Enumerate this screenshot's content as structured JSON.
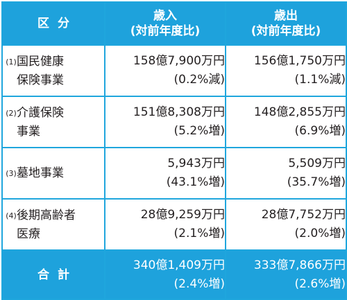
{
  "header": {
    "category": "区分",
    "revenue_title": "歳入",
    "revenue_sub": "(対前年度比)",
    "expense_title": "歳出",
    "expense_sub": "(対前年度比)"
  },
  "rows": [
    {
      "num": "(1)",
      "name_line1": "国民健康",
      "name_line2": "保険事業",
      "revenue": "158億7,900万円",
      "revenue_change": "(0.2%減)",
      "expense": "156億1,750万円",
      "expense_change": "(1.1%減)"
    },
    {
      "num": "(2)",
      "name_line1": "介護保険",
      "name_line2": "事業",
      "revenue": "151億8,308万円",
      "revenue_change": "(5.2%増)",
      "expense": "148億2,855万円",
      "expense_change": "(6.9%増)"
    },
    {
      "num": "(3)",
      "name_line1": "墓地事業",
      "name_line2": "",
      "revenue": "5,943万円",
      "revenue_change": "(43.1%増)",
      "expense": "5,509万円",
      "expense_change": "(35.7%増)"
    },
    {
      "num": "(4)",
      "name_line1": "後期高齢者",
      "name_line2": "医療",
      "revenue": "28億9,259万円",
      "revenue_change": "(2.1%増)",
      "expense": "28億7,752万円",
      "expense_change": "(2.0%増)"
    }
  ],
  "total": {
    "label": "合計",
    "revenue": "340億1,409万円",
    "revenue_change": "(2.4%増)",
    "expense": "333億7,866万円",
    "expense_change": "(2.6%増)"
  },
  "colors": {
    "header_bg": "#1ea2dc",
    "border": "#1fa6dd",
    "text": "#231f20"
  }
}
